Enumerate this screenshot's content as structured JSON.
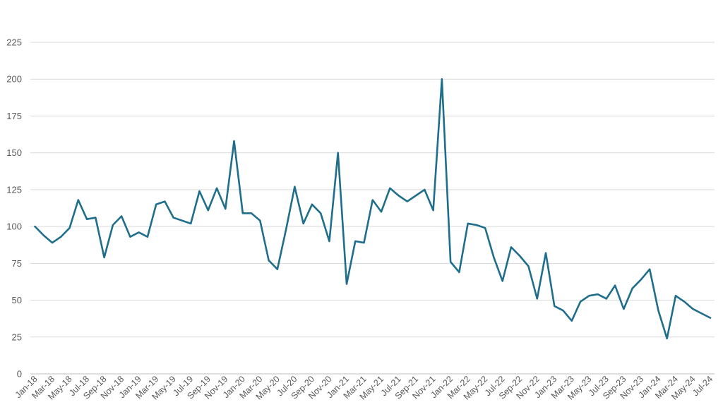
{
  "chart_data": {
    "type": "line",
    "title": "",
    "xlabel": "",
    "ylabel": "",
    "ylim": [
      0,
      225
    ],
    "yticks": [
      0,
      25,
      50,
      75,
      100,
      125,
      150,
      175,
      200,
      225
    ],
    "grid": true,
    "line_color": "#1f6e8c",
    "grid_color": "#d9d9d9",
    "x": [
      "Jan-18",
      "Feb-18",
      "Mar-18",
      "Apr-18",
      "May-18",
      "Jun-18",
      "Jul-18",
      "Aug-18",
      "Sep-18",
      "Oct-18",
      "Nov-18",
      "Dec-18",
      "Jan-19",
      "Feb-19",
      "Mar-19",
      "Apr-19",
      "May-19",
      "Jun-19",
      "Jul-19",
      "Aug-19",
      "Sep-19",
      "Oct-19",
      "Nov-19",
      "Dec-19",
      "Jan-20",
      "Feb-20",
      "Mar-20",
      "Apr-20",
      "May-20",
      "Jun-20",
      "Jul-20",
      "Aug-20",
      "Sep-20",
      "Oct-20",
      "Nov-20",
      "Dec-20",
      "Jan-21",
      "Feb-21",
      "Mar-21",
      "Apr-21",
      "May-21",
      "Jun-21",
      "Jul-21",
      "Aug-21",
      "Sep-21",
      "Oct-21",
      "Nov-21",
      "Dec-21",
      "Jan-22",
      "Feb-22",
      "Mar-22",
      "Apr-22",
      "May-22",
      "Jun-22",
      "Jul-22",
      "Aug-22",
      "Sep-22",
      "Oct-22",
      "Nov-22",
      "Dec-22",
      "Jan-23",
      "Feb-23",
      "Mar-23",
      "Apr-23",
      "May-23",
      "Jun-23",
      "Jul-23",
      "Aug-23",
      "Sep-23",
      "Oct-23",
      "Nov-23",
      "Dec-23",
      "Jan-24",
      "Feb-24",
      "Mar-24",
      "Apr-24",
      "May-24",
      "Jun-24",
      "Jul-24"
    ],
    "xtick_labels": [
      "Jan-18",
      "Mar-18",
      "May-18",
      "Jul-18",
      "Sep-18",
      "Nov-18",
      "Jan-19",
      "Mar-19",
      "May-19",
      "Jul-19",
      "Sep-19",
      "Nov-19",
      "Jan-20",
      "Mar-20",
      "May-20",
      "Jul-20",
      "Sep-20",
      "Nov-20",
      "Jan-21",
      "Mar-21",
      "May-21",
      "Jul-21",
      "Sep-21",
      "Nov-21",
      "Jan-22",
      "Mar-22",
      "May-22",
      "Jul-22",
      "Sep-22",
      "Nov-22",
      "Jan-23",
      "Mar-23",
      "May-23",
      "Jul-23",
      "Sep-23",
      "Nov-23",
      "Jan-24",
      "Mar-24",
      "May-24",
      "Jul-24"
    ],
    "series": [
      {
        "values": [
          100,
          94,
          89,
          93,
          99,
          118,
          105,
          106,
          79,
          101,
          107,
          93,
          96,
          93,
          115,
          117,
          106,
          104,
          102,
          124,
          111,
          126,
          112,
          158,
          109,
          109,
          104,
          77,
          71,
          98,
          127,
          102,
          115,
          109,
          90,
          150,
          61,
          90,
          89,
          118,
          110,
          126,
          121,
          117,
          121,
          125,
          111,
          200,
          76,
          69,
          102,
          101,
          99,
          79,
          63,
          86,
          80,
          73,
          51,
          82,
          46,
          43,
          36,
          49,
          53,
          54,
          51,
          60,
          44,
          58,
          64,
          71,
          43,
          24,
          53,
          49,
          44,
          41,
          38
        ]
      }
    ]
  }
}
